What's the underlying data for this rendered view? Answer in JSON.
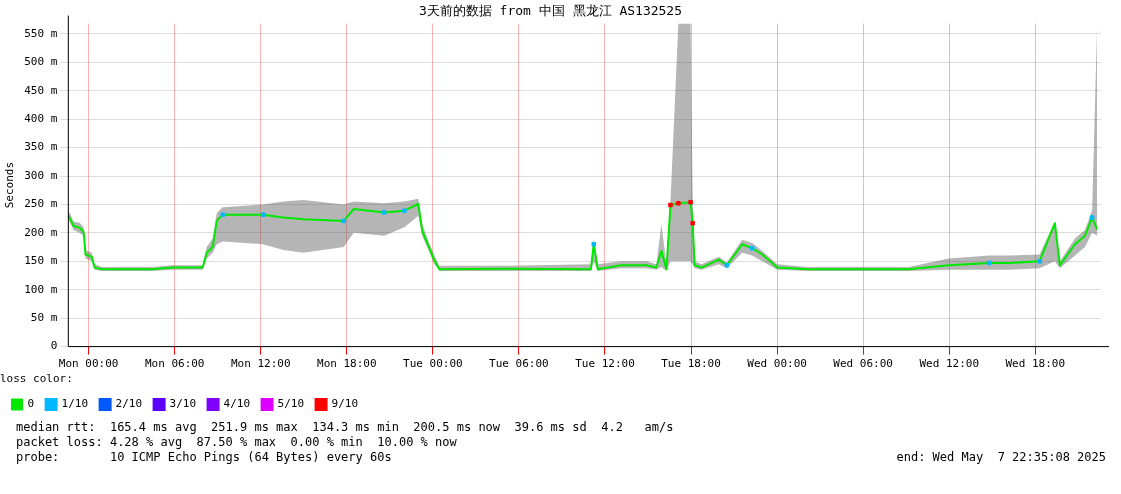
{
  "chart_data": {
    "type": "line",
    "title": "3天前的数据 from 中国 黑龙江 AS132525",
    "ylabel": "Seconds",
    "xlim": [
      "2025-05-04T22:35",
      "2025-05-07T22:35"
    ],
    "xticks": [
      {
        "value": "2025-05-05T00:00",
        "label": "Mon 00:00"
      },
      {
        "value": "2025-05-05T06:00",
        "label": "Mon 06:00"
      },
      {
        "value": "2025-05-05T12:00",
        "label": "Mon 12:00"
      },
      {
        "value": "2025-05-05T18:00",
        "label": "Mon 18:00"
      },
      {
        "value": "2025-05-06T00:00",
        "label": "Tue 00:00"
      },
      {
        "value": "2025-05-06T06:00",
        "label": "Tue 06:00"
      },
      {
        "value": "2025-05-06T12:00",
        "label": "Tue 12:00"
      },
      {
        "value": "2025-05-06T18:00",
        "label": "Tue 18:00"
      },
      {
        "value": "2025-05-07T00:00",
        "label": "Wed 00:00"
      },
      {
        "value": "2025-05-07T06:00",
        "label": "Wed 06:00"
      },
      {
        "value": "2025-05-07T12:00",
        "label": "Wed 12:00"
      },
      {
        "value": "2025-05-07T18:00",
        "label": "Wed 18:00"
      }
    ],
    "ylim": [
      0,
      568
    ],
    "yticks": [
      0,
      {
        "value": 50,
        "label": "50 m"
      },
      {
        "value": 100,
        "label": "100 m"
      },
      {
        "value": 150,
        "label": "150 m"
      },
      {
        "value": 200,
        "label": "200 m"
      },
      {
        "value": 250,
        "label": "250 m"
      },
      {
        "value": 300,
        "label": "300 m"
      },
      {
        "value": 350,
        "label": "350 m"
      },
      {
        "value": 400,
        "label": "400 m"
      },
      {
        "value": 450,
        "label": "450 m"
      },
      {
        "value": 500,
        "label": "500 m"
      },
      {
        "value": 550,
        "label": "550 m"
      }
    ],
    "grid": true,
    "legend": "bottom",
    "legend_title": "loss color:",
    "series": [
      {
        "name": "0",
        "color": "#00e800",
        "x": [
          "2025-05-04T22:35",
          "2025-05-04T22:57",
          "2025-05-04T23:22",
          "2025-05-04T23:39",
          "2025-05-04T23:47",
          "2025-05-05T00:13",
          "2025-05-05T00:25",
          "2025-05-05T00:55",
          "2025-05-05T04:26",
          "2025-05-05T05:50",
          "2025-05-05T07:57",
          "2025-05-05T08:14",
          "2025-05-05T08:39",
          "2025-05-05T08:56",
          "2025-05-05T09:21",
          "2025-05-05T12:10",
          "2025-05-05T13:34",
          "2025-05-05T14:59",
          "2025-05-05T17:47",
          "2025-05-05T18:29",
          "2025-05-05T20:36",
          "2025-05-05T22:01",
          "2025-05-05T22:59",
          "2025-05-05T23:16",
          "2025-05-05T23:46",
          "2025-05-06T00:07",
          "2025-05-06T00:28",
          "2025-05-06T05:02",
          "2025-05-06T11:01",
          "2025-05-06T11:13",
          "2025-05-06T11:30",
          "2025-05-06T13:07",
          "2025-05-06T14:53",
          "2025-05-06T15:35",
          "2025-05-06T15:56",
          "2025-05-06T16:17",
          "2025-05-06T16:34",
          "2025-05-06T17:07",
          "2025-05-06T17:58",
          "2025-05-06T18:07",
          "2025-05-06T18:15",
          "2025-05-06T18:44",
          "2025-05-06T19:56",
          "2025-05-06T20:30",
          "2025-05-06T21:34",
          "2025-05-06T22:16",
          "2025-05-06T22:58",
          "2025-05-07T00:01",
          "2025-05-07T02:08",
          "2025-05-07T09:10",
          "2025-05-07T11:58",
          "2025-05-07T14:47",
          "2025-05-07T16:11",
          "2025-05-07T18:18",
          "2025-05-07T19:22",
          "2025-05-07T19:43",
          "2025-05-07T20:46",
          "2025-05-07T21:28",
          "2025-05-07T21:58",
          "2025-05-07T22:19"
        ],
        "values": [
          231,
          212,
          209,
          202,
          162,
          158,
          139,
          136,
          136,
          139,
          139,
          165,
          175,
          221,
          232,
          232,
          227,
          224,
          221,
          242,
          236,
          239,
          251,
          202,
          173,
          150,
          136,
          137,
          136,
          180,
          136,
          143,
          143,
          139,
          168,
          136,
          249,
          252,
          254,
          217,
          143,
          139,
          153,
          143,
          180,
          173,
          162,
          139,
          136,
          136,
          143,
          147,
          147,
          150,
          217,
          143,
          180,
          195,
          227,
          206
        ],
        "lower": [
          225,
          205,
          200,
          195,
          155,
          150,
          135,
          133,
          133,
          135,
          135,
          155,
          165,
          180,
          185,
          180,
          170,
          165,
          175,
          200,
          195,
          210,
          230,
          195,
          165,
          145,
          133,
          133,
          133,
          150,
          133,
          138,
          138,
          135,
          140,
          133,
          150,
          150,
          150,
          145,
          138,
          135,
          145,
          138,
          165,
          160,
          150,
          135,
          133,
          133,
          135,
          135,
          135,
          138,
          150,
          138,
          160,
          175,
          200,
          195
        ],
        "upper": [
          240,
          220,
          218,
          210,
          170,
          165,
          145,
          140,
          140,
          143,
          143,
          175,
          190,
          235,
          245,
          250,
          255,
          258,
          250,
          255,
          252,
          255,
          260,
          215,
          180,
          160,
          142,
          142,
          145,
          190,
          145,
          150,
          150,
          145,
          215,
          145,
          255,
          568,
          568,
          260,
          150,
          145,
          158,
          148,
          188,
          182,
          168,
          145,
          140,
          140,
          155,
          160,
          160,
          162,
          220,
          150,
          190,
          205,
          240,
          568
        ]
      },
      {
        "name": "1/10",
        "color": "#00b8ff",
        "type": "scatter",
        "x": [
          "2025-05-05T09:21",
          "2025-05-05T12:10",
          "2025-05-05T17:47",
          "2025-05-05T20:36",
          "2025-05-05T22:01",
          "2025-05-06T11:13",
          "2025-05-06T20:30",
          "2025-05-06T22:16",
          "2025-05-07T14:47",
          "2025-05-07T18:18",
          "2025-05-07T21:58"
        ],
        "values": [
          232,
          232,
          221,
          236,
          239,
          180,
          143,
          173,
          147,
          150,
          227
        ]
      },
      {
        "name": "2/10",
        "color": "#0059ff",
        "type": "scatter"
      },
      {
        "name": "3/10",
        "color": "#5e00ff",
        "type": "scatter"
      },
      {
        "name": "4/10",
        "color": "#7e00ff",
        "type": "scatter"
      },
      {
        "name": "5/10",
        "color": "#dd00ff",
        "type": "scatter"
      },
      {
        "name": "9/10",
        "color": "#ff0000",
        "type": "scatter",
        "x": [
          "2025-05-06T16:34",
          "2025-05-06T17:07",
          "2025-05-06T17:58",
          "2025-05-06T18:07"
        ],
        "values": [
          249,
          252,
          254,
          217
        ]
      }
    ],
    "annotations": [
      "median rtt:  165.4 ms avg  251.9 ms max  134.3 ms min  200.5 ms now  39.6 ms sd  4.2   am/s",
      "packet loss: 4.28 % avg  87.50 % max  0.00 % min  10.00 % now",
      "probe:       10 ICMP Echo Pings (64 Bytes) every 60s",
      "end: Wed May  7 22:35:08 2025"
    ]
  }
}
